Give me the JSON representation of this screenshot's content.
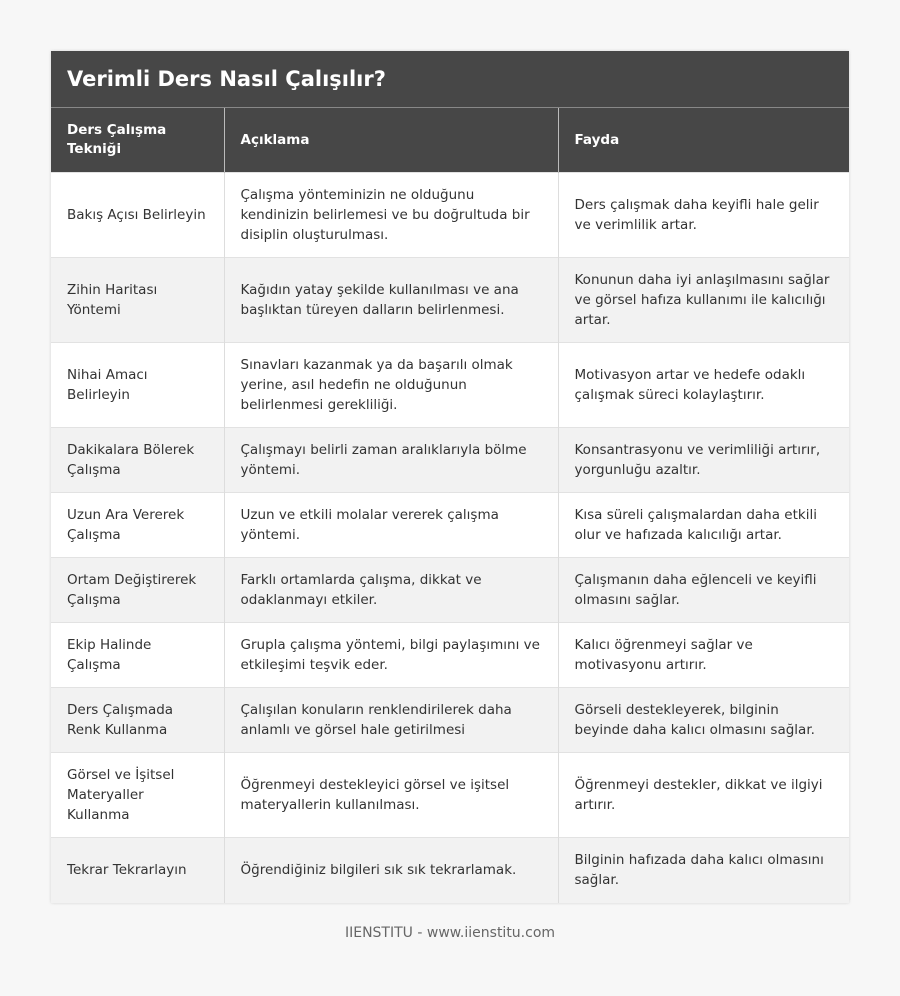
{
  "title": "Verimli Ders Nasıl Çalışılır?",
  "columns": [
    "Ders Çalışma Tekniği",
    "Açıklama",
    "Fayda"
  ],
  "rows": [
    [
      "Bakış Açısı Belirleyin",
      "Çalışma yönteminizin ne olduğunu kendinizin belirlemesi ve bu doğrultuda bir disiplin oluşturulması.",
      "Ders çalışmak daha keyifli hale gelir ve verimlilik artar."
    ],
    [
      "Zihin Haritası Yöntemi",
      "Kağıdın yatay şekilde kullanılması ve ana başlıktan türeyen dalların belirlenmesi.",
      "Konunun daha iyi anlaşılmasını sağlar ve görsel hafıza kullanımı ile kalıcılığı artar."
    ],
    [
      "Nihai Amacı Belirleyin",
      "Sınavları kazanmak ya da başarılı olmak yerine, asıl hedefin ne olduğunun belirlenmesi gerekliliği.",
      "Motivasyon artar ve hedefe odaklı çalışmak süreci kolaylaştırır."
    ],
    [
      "Dakikalara Bölerek Çalışma",
      "Çalışmayı belirli zaman aralıklarıyla bölme yöntemi.",
      "Konsantrasyonu ve verimliliği artırır, yorgunluğu azaltır."
    ],
    [
      "Uzun Ara Vererek Çalışma",
      "Uzun ve etkili molalar vererek çalışma yöntemi.",
      "Kısa süreli çalışmalardan daha etkili olur ve hafızada kalıcılığı artar."
    ],
    [
      "Ortam Değiştirerek Çalışma",
      "Farklı ortamlarda çalışma, dikkat ve odaklanmayı etkiler.",
      "Çalışmanın daha eğlenceli ve keyifli olmasını sağlar."
    ],
    [
      "Ekip Halinde Çalışma",
      "Grupla çalışma yöntemi, bilgi paylaşımını ve etkileşimi teşvik eder.",
      "Kalıcı öğrenmeyi sağlar ve motivasyonu artırır."
    ],
    [
      "Ders Çalışmada Renk Kullanma",
      "Çalışılan konuların renklendirilerek daha anlamlı ve görsel hale getirilmesi",
      "Görseli destekleyerek, bilginin beyinde daha kalıcı olmasını sağlar."
    ],
    [
      "Görsel ve İşitsel Materyaller Kullanma",
      "Öğrenmeyi destekleyici görsel ve işitsel materyallerin kullanılması.",
      "Öğrenmeyi destekler, dikkat ve ilgiyi artırır."
    ],
    [
      "Tekrar Tekrarlayın",
      "Öğrendiğiniz bilgileri sık sık tekrarlamak.",
      "Bilginin hafızada daha kalıcı olmasını sağlar."
    ]
  ],
  "footer": "IIENSTITU - www.iienstitu.com",
  "colors": {
    "header_bg": "#474747",
    "alt_row_bg": "#f2f2f2"
  }
}
